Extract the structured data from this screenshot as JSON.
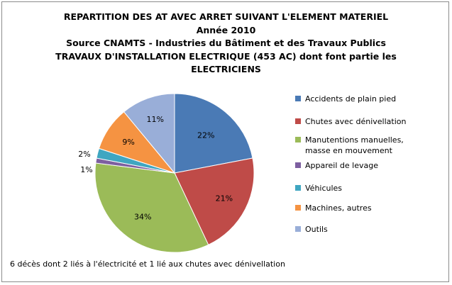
{
  "chart_data": {
    "type": "pie",
    "title_lines": [
      "REPARTITION DES AT AVEC ARRET SUIVANT L'ELEMENT MATERIEL",
      "Année 2010",
      "Source CNAMTS - Industries du Bâtiment et des Travaux Publics",
      "TRAVAUX D'INSTALLATION ELECTRIQUE (453 AC) dont font partie les",
      "ELECTRICIENS"
    ],
    "slices": [
      {
        "name": "Accidents de plain pied",
        "value": 22,
        "label": "22%",
        "color": "#4a7ab5"
      },
      {
        "name": "Chutes avec dénivellation",
        "value": 21,
        "label": "21%",
        "color": "#bf4b48"
      },
      {
        "name": "Manutentions manuelles, masse en mouvement",
        "value": 34,
        "label": "34%",
        "color": "#9bbb58"
      },
      {
        "name": "Appareil de levage",
        "value": 1,
        "label": "1%",
        "color": "#7d5fa0"
      },
      {
        "name": "Véhicules",
        "value": 2,
        "label": "2%",
        "color": "#3fa6c1"
      },
      {
        "name": "Machines, autres",
        "value": 9,
        "label": "9%",
        "color": "#f59342"
      },
      {
        "name": "Outils",
        "value": 11,
        "label": "11%",
        "color": "#99aed8"
      }
    ],
    "legend_position": "right",
    "legend_lines": [
      [
        "Accidents de plain pied"
      ],
      [
        "Chutes avec dénivellation"
      ],
      [
        "Manutentions manuelles,",
        "masse en mouvement"
      ],
      [
        "Appareil de levage"
      ],
      [
        "Véhicules"
      ],
      [
        "Machines, autres"
      ],
      [
        "Outils"
      ]
    ],
    "annotation": "6 décès dont 2 liés à l'électricité et 1 lié aux chutes avec dénivellation"
  }
}
